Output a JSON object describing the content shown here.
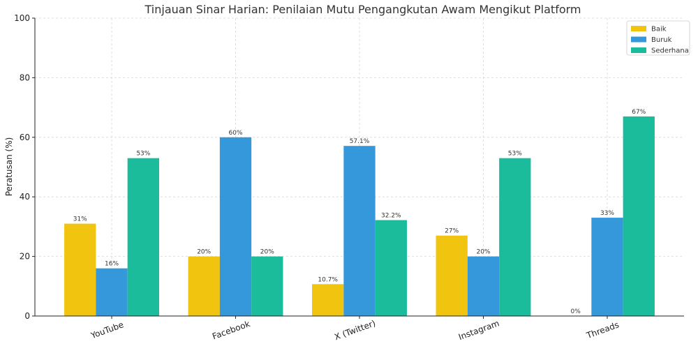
{
  "chart_data": {
    "type": "bar",
    "title": "Tinjauan Sinar Harian: Penilaian Mutu Pengangkutan Awam Mengikut Platform",
    "xlabel": "",
    "ylabel": "Peratusan (%)",
    "ylim": [
      0,
      100
    ],
    "yticks": [
      0,
      20,
      40,
      60,
      80,
      100
    ],
    "grid": true,
    "legend_position": "top-right",
    "categories": [
      "YouTube",
      "Facebook",
      "X (Twitter)",
      "Instagram",
      "Threads"
    ],
    "series": [
      {
        "name": "Baik",
        "color": "#f1c40f",
        "values": [
          31,
          20,
          10.7,
          27,
          0
        ],
        "labels": [
          "31%",
          "20%",
          "10.7%",
          "27%",
          "0%"
        ]
      },
      {
        "name": "Buruk",
        "color": "#3498db",
        "values": [
          16,
          60,
          57.1,
          20,
          33
        ],
        "labels": [
          "16%",
          "60%",
          "57.1%",
          "20%",
          "33%"
        ]
      },
      {
        "name": "Sederhana",
        "color": "#1abc9c",
        "values": [
          53,
          20,
          32.2,
          53,
          67
        ],
        "labels": [
          "53%",
          "20%",
          "32.2%",
          "53%",
          "67%"
        ]
      }
    ]
  }
}
